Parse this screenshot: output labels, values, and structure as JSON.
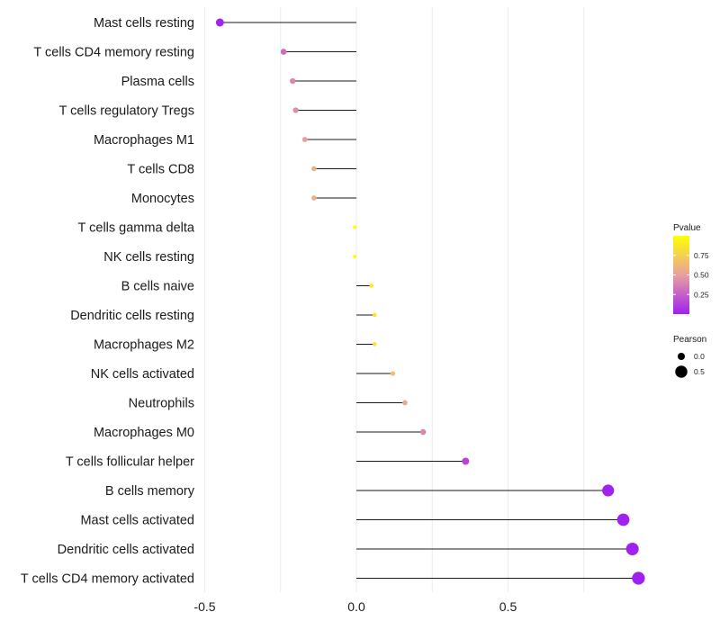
{
  "chart_data": {
    "type": "lollipop",
    "categories": [
      "Mast cells resting",
      "T cells CD4 memory resting",
      "Plasma cells",
      "T cells regulatory  Tregs ",
      "Macrophages M1",
      "T cells CD8",
      "Monocytes",
      "T cells gamma delta",
      "NK cells resting",
      "B cells naive",
      "Dendritic cells resting",
      "Macrophages M2",
      "NK cells activated",
      "Neutrophils",
      "Macrophages M0",
      "T cells follicular helper",
      "B cells memory",
      "Mast cells activated",
      "Dendritic cells activated",
      "T cells CD4 memory activated"
    ],
    "values": [
      -0.45,
      -0.24,
      -0.21,
      -0.2,
      -0.17,
      -0.14,
      -0.14,
      -0.005,
      -0.005,
      0.05,
      0.06,
      0.06,
      0.12,
      0.16,
      0.22,
      0.36,
      0.83,
      0.88,
      0.91,
      0.93
    ],
    "pvalues": [
      0.02,
      0.3,
      0.4,
      0.42,
      0.5,
      0.58,
      0.58,
      0.99,
      0.99,
      0.9,
      0.85,
      0.85,
      0.65,
      0.55,
      0.4,
      0.15,
      0.005,
      0.003,
      0.002,
      0.001
    ],
    "xlabel": "",
    "ylabel": "",
    "xlim": [
      -0.5,
      1.0
    ],
    "xticks": [
      -0.5,
      0.0,
      0.5
    ],
    "xtick_labels": [
      "-0.5",
      "0.0",
      "0.5"
    ],
    "grid": true,
    "color_scale": {
      "title": "Pvalue",
      "low_color": "#a020f0",
      "high_color": "#ffff00",
      "ticks": [
        0.25,
        0.5,
        0.75
      ],
      "tick_labels": [
        "0.25",
        "0.50",
        "0.75"
      ]
    },
    "size_scale": {
      "title": "Pearson",
      "values": [
        0.0,
        0.5
      ],
      "labels": [
        "0.0",
        "0.5"
      ]
    },
    "legend_position": "right"
  }
}
